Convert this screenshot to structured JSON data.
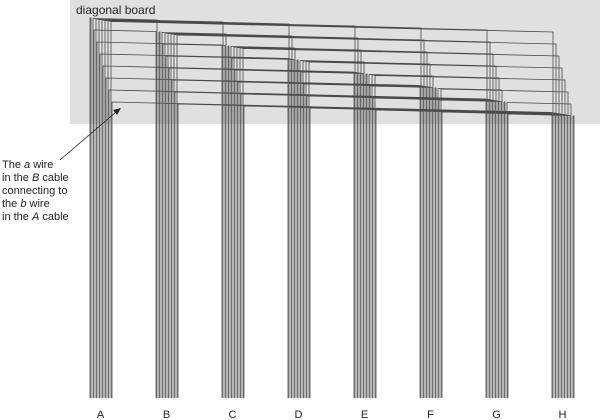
{
  "diagram": {
    "board_label": "diagonal board",
    "board_color": "#e0e0e0",
    "wire_color": "#4a4a4a",
    "cables": [
      "A",
      "B",
      "C",
      "D",
      "E",
      "F",
      "G",
      "H"
    ],
    "wires_per_cable": 8,
    "annotation": {
      "lines": [
        [
          {
            "text": "The "
          },
          {
            "text": "a",
            "italic": true
          },
          {
            "text": " wire"
          }
        ],
        [
          {
            "text": "in the "
          },
          {
            "text": "B",
            "italic": true
          },
          {
            "text": " cable"
          }
        ],
        [
          {
            "text": "connecting to"
          }
        ],
        [
          {
            "text": "the "
          },
          {
            "text": "b",
            "italic": true
          },
          {
            "text": " wire"
          }
        ],
        [
          {
            "text": "in the "
          },
          {
            "text": "A",
            "italic": true
          },
          {
            "text": " cable"
          }
        ]
      ]
    }
  }
}
